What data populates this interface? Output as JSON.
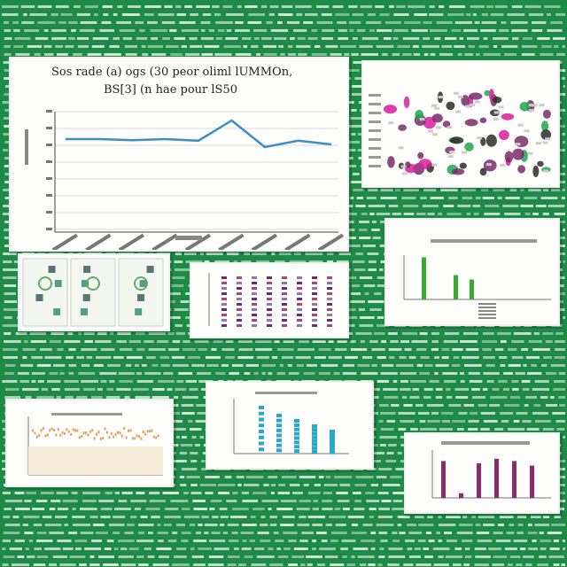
{
  "scene": {
    "background_color": "#1f8a48",
    "text_texture_color": "#e8f5ea",
    "panel_color": "#fdfdfb"
  },
  "panels": {
    "line_chart": {
      "title_line1": "Sos rade (a) ogs (30 peor oliml lUMMOn,",
      "title_line2": "BS[3] (n hae pour lS50",
      "line_color": "#3c8fc4",
      "values": [
        0.45,
        0.45,
        0.43,
        0.45,
        0.42,
        0.8,
        0.3,
        0.42,
        0.35
      ]
    },
    "heatmap": {
      "accent_colors": [
        "#1fa84a",
        "#d61f9a",
        "#7a2b6b",
        "#2b2b2b"
      ]
    },
    "triptych": {
      "panel_count": 3
    },
    "bar_chart_green": {
      "values": [
        0.95,
        0.55,
        0.45
      ],
      "color": "#3aaa35"
    },
    "striped_columns": {
      "colors": [
        "#6a2f6a",
        "#b0476a",
        "#8a7ab0"
      ]
    },
    "scatter_orange": {
      "color": "#e0a060"
    },
    "bar_chart_teal": {
      "values": [
        0.9,
        0.75,
        0.65,
        0.55,
        0.45
      ],
      "color": "#2aa8c8"
    },
    "bar_chart_purple": {
      "values": [
        0.8,
        0.1,
        0.75,
        0.85,
        0.8,
        0.7
      ],
      "color": "#8a2b6b"
    }
  }
}
